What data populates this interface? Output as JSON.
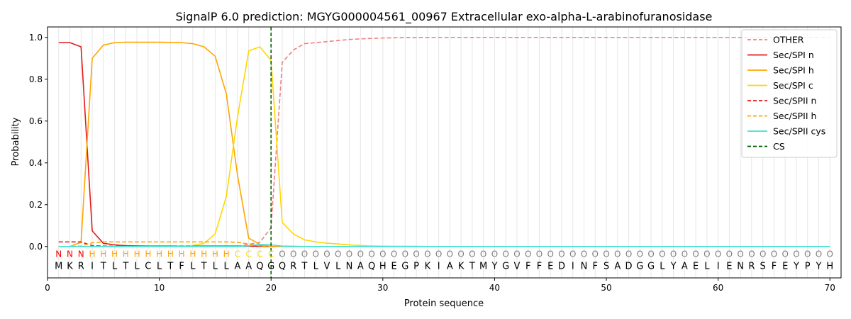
{
  "chart_data": {
    "type": "line",
    "title": "SignalP 6.0 prediction: MGYG000004561_00967 Extracellular exo-alpha-L-arabinofuranosidase",
    "xlabel": "Protein sequence",
    "ylabel": "Probability",
    "xlim": [
      0,
      71
    ],
    "ylim": [
      -0.15,
      1.05
    ],
    "xticks": [
      "0",
      "10",
      "20",
      "30",
      "40",
      "50",
      "60",
      "70"
    ],
    "yticks": [
      "0.0",
      "0.2",
      "0.4",
      "0.6",
      "0.8",
      "1.0"
    ],
    "legend_position": "top-right",
    "sequence": [
      "M",
      "K",
      "R",
      "I",
      "T",
      "L",
      "T",
      "L",
      "C",
      "L",
      "T",
      "F",
      "L",
      "T",
      "L",
      "L",
      "A",
      "A",
      "Q",
      "G",
      "Q",
      "R",
      "T",
      "L",
      "V",
      "L",
      "N",
      "A",
      "Q",
      "H",
      "E",
      "G",
      "P",
      "K",
      "I",
      "A",
      "K",
      "T",
      "M",
      "Y",
      "G",
      "V",
      "F",
      "F",
      "E",
      "D",
      "I",
      "N",
      "F",
      "S",
      "A",
      "D",
      "G",
      "G",
      "L",
      "Y",
      "A",
      "E",
      "L",
      "I",
      "E",
      "N",
      "R",
      "S",
      "F",
      "E",
      "Y",
      "P",
      "Y",
      "H"
    ],
    "region_labels": [
      "N",
      "N",
      "N",
      "H",
      "H",
      "H",
      "H",
      "H",
      "H",
      "H",
      "H",
      "H",
      "H",
      "H",
      "H",
      "H",
      "C",
      "C",
      "C",
      "C",
      "O",
      "O",
      "O",
      "O",
      "O",
      "O",
      "O",
      "O",
      "O",
      "O",
      "O",
      "O",
      "O",
      "O",
      "O",
      "O",
      "O",
      "O",
      "O",
      "O",
      "O",
      "O",
      "O",
      "O",
      "O",
      "O",
      "O",
      "O",
      "O",
      "O",
      "O",
      "O",
      "O",
      "O",
      "O",
      "O",
      "O",
      "O",
      "O",
      "O",
      "O",
      "O",
      "O",
      "O",
      "O",
      "O",
      "O",
      "O",
      "O",
      "O"
    ],
    "region_colors": {
      "N": "#ff0000",
      "H": "#ffa500",
      "C": "#ffd700",
      "O": "#808080"
    },
    "cleavage_site": 20,
    "series": [
      {
        "name": "OTHER",
        "color": "#f08080",
        "dash": "dashed",
        "values": [
          0.0,
          0.0,
          0.0,
          0.0,
          0.0,
          0.0,
          0.0,
          0.0,
          0.0,
          0.0,
          0.0,
          0.0,
          0.0,
          0.0,
          0.0,
          0.0,
          0.0,
          0.01,
          0.02,
          0.09,
          0.88,
          0.94,
          0.97,
          0.975,
          0.98,
          0.985,
          0.99,
          0.993,
          0.995,
          0.997,
          0.998,
          0.999,
          0.999,
          1.0,
          1.0,
          1.0,
          1.0,
          1.0,
          1.0,
          1.0,
          1.0,
          1.0,
          1.0,
          1.0,
          1.0,
          1.0,
          1.0,
          1.0,
          1.0,
          1.0,
          1.0,
          1.0,
          1.0,
          1.0,
          1.0,
          1.0,
          1.0,
          1.0,
          1.0,
          1.0,
          1.0,
          1.0,
          1.0,
          1.0,
          1.0,
          1.0,
          1.0,
          1.0,
          1.0,
          1.0
        ]
      },
      {
        "name": "Sec/SPI n",
        "color": "#e31a1c",
        "dash": "solid",
        "values": [
          0.975,
          0.975,
          0.955,
          0.075,
          0.015,
          0.008,
          0.004,
          0.003,
          0.002,
          0.002,
          0.002,
          0.002,
          0.002,
          0.002,
          0.002,
          0.002,
          0.002,
          0.002,
          0.002,
          0.0,
          0.0,
          0.0,
          0.0,
          0.0,
          0.0,
          0.0,
          0.0,
          0.0,
          0.0,
          0.0,
          0.0,
          0.0,
          0.0,
          0.0,
          0.0,
          0.0,
          0.0,
          0.0,
          0.0,
          0.0,
          0.0,
          0.0,
          0.0,
          0.0,
          0.0,
          0.0,
          0.0,
          0.0,
          0.0,
          0.0,
          0.0,
          0.0,
          0.0,
          0.0,
          0.0,
          0.0,
          0.0,
          0.0,
          0.0,
          0.0,
          0.0,
          0.0,
          0.0,
          0.0,
          0.0,
          0.0,
          0.0,
          0.0,
          0.0,
          0.0
        ]
      },
      {
        "name": "Sec/SPI h",
        "color": "#ffa500",
        "dash": "solid",
        "values": [
          0.0,
          0.0,
          0.02,
          0.9,
          0.963,
          0.975,
          0.977,
          0.977,
          0.977,
          0.977,
          0.976,
          0.975,
          0.97,
          0.955,
          0.91,
          0.73,
          0.34,
          0.04,
          0.01,
          0.0,
          0.0,
          0.0,
          0.0,
          0.0,
          0.0,
          0.0,
          0.0,
          0.0,
          0.0,
          0.0,
          0.0,
          0.0,
          0.0,
          0.0,
          0.0,
          0.0,
          0.0,
          0.0,
          0.0,
          0.0,
          0.0,
          0.0,
          0.0,
          0.0,
          0.0,
          0.0,
          0.0,
          0.0,
          0.0,
          0.0,
          0.0,
          0.0,
          0.0,
          0.0,
          0.0,
          0.0,
          0.0,
          0.0,
          0.0,
          0.0,
          0.0,
          0.0,
          0.0,
          0.0,
          0.0,
          0.0,
          0.0,
          0.0,
          0.0,
          0.0
        ]
      },
      {
        "name": "Sec/SPI c",
        "color": "#ffd700",
        "dash": "solid",
        "values": [
          0.0,
          0.0,
          0.0,
          0.0,
          0.0,
          0.0,
          0.0,
          0.0,
          0.0,
          0.0,
          0.0,
          0.002,
          0.005,
          0.015,
          0.06,
          0.24,
          0.62,
          0.935,
          0.955,
          0.89,
          0.115,
          0.06,
          0.032,
          0.022,
          0.016,
          0.012,
          0.008,
          0.005,
          0.003,
          0.002,
          0.001,
          0.001,
          0.001,
          0.0,
          0.0,
          0.0,
          0.0,
          0.0,
          0.0,
          0.0,
          0.0,
          0.0,
          0.0,
          0.0,
          0.0,
          0.0,
          0.0,
          0.0,
          0.0,
          0.0,
          0.0,
          0.0,
          0.0,
          0.0,
          0.0,
          0.0,
          0.0,
          0.0,
          0.0,
          0.0,
          0.0,
          0.0,
          0.0,
          0.0,
          0.0,
          0.0,
          0.0,
          0.0,
          0.0,
          0.0
        ]
      },
      {
        "name": "Sec/SPII n",
        "color": "#e31a1c",
        "dash": "dashed",
        "values": [
          0.022,
          0.022,
          0.022,
          0.004,
          0.002,
          0.001,
          0.001,
          0.001,
          0.001,
          0.001,
          0.001,
          0.001,
          0.001,
          0.001,
          0.001,
          0.001,
          0.001,
          0.001,
          0.001,
          0.0,
          0.0,
          0.0,
          0.0,
          0.0,
          0.0,
          0.0,
          0.0,
          0.0,
          0.0,
          0.0,
          0.0,
          0.0,
          0.0,
          0.0,
          0.0,
          0.0,
          0.0,
          0.0,
          0.0,
          0.0,
          0.0,
          0.0,
          0.0,
          0.0,
          0.0,
          0.0,
          0.0,
          0.0,
          0.0,
          0.0,
          0.0,
          0.0,
          0.0,
          0.0,
          0.0,
          0.0,
          0.0,
          0.0,
          0.0,
          0.0,
          0.0,
          0.0,
          0.0,
          0.0,
          0.0,
          0.0,
          0.0,
          0.0,
          0.0,
          0.0
        ]
      },
      {
        "name": "Sec/SPII h",
        "color": "#ffa500",
        "dash": "dashed",
        "values": [
          0.0,
          0.0,
          0.002,
          0.018,
          0.022,
          0.022,
          0.022,
          0.022,
          0.022,
          0.022,
          0.022,
          0.022,
          0.022,
          0.022,
          0.022,
          0.022,
          0.02,
          0.012,
          0.003,
          0.0,
          0.0,
          0.0,
          0.0,
          0.0,
          0.0,
          0.0,
          0.0,
          0.0,
          0.0,
          0.0,
          0.0,
          0.0,
          0.0,
          0.0,
          0.0,
          0.0,
          0.0,
          0.0,
          0.0,
          0.0,
          0.0,
          0.0,
          0.0,
          0.0,
          0.0,
          0.0,
          0.0,
          0.0,
          0.0,
          0.0,
          0.0,
          0.0,
          0.0,
          0.0,
          0.0,
          0.0,
          0.0,
          0.0,
          0.0,
          0.0,
          0.0,
          0.0,
          0.0,
          0.0,
          0.0,
          0.0,
          0.0,
          0.0,
          0.0,
          0.0
        ]
      },
      {
        "name": "Sec/SPII cys",
        "color": "#40e0d0",
        "dash": "solid",
        "values": [
          0.0,
          0.0,
          0.0,
          0.0,
          0.0,
          0.0,
          0.0,
          0.0,
          0.0,
          0.0,
          0.0,
          0.0,
          0.0,
          0.0,
          0.0,
          0.0,
          0.0,
          0.003,
          0.01,
          0.008,
          0.002,
          0.001,
          0.0,
          0.0,
          0.0,
          0.0,
          0.0,
          0.0,
          0.0,
          0.0,
          0.0,
          0.0,
          0.0,
          0.0,
          0.0,
          0.0,
          0.0,
          0.0,
          0.0,
          0.0,
          0.0,
          0.0,
          0.0,
          0.0,
          0.0,
          0.0,
          0.0,
          0.0,
          0.0,
          0.0,
          0.0,
          0.0,
          0.0,
          0.0,
          0.0,
          0.0,
          0.0,
          0.0,
          0.0,
          0.0,
          0.0,
          0.0,
          0.0,
          0.0,
          0.0,
          0.0,
          0.0,
          0.0,
          0.0,
          0.0
        ]
      }
    ],
    "cs_legend": {
      "name": "CS",
      "color": "#006400",
      "dash": "dashed"
    }
  }
}
